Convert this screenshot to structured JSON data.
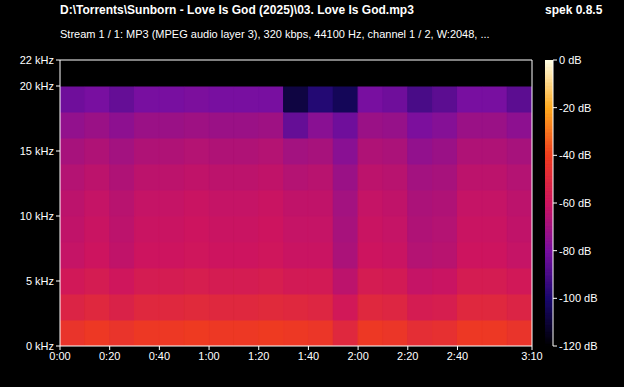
{
  "chart_data": {
    "type": "heatmap",
    "title": "D:\\Torrents\\Sunborn - Love Is God (2025)\\03. Love Is God.mp3",
    "subtitle": "Stream 1 / 1: MP3 (MPEG audio layer 3), 320 kbps, 44100 Hz, channel 1 / 2, W:2048, ...",
    "annotations": [
      "spek 0.8.5"
    ],
    "xlim": [
      0,
      190
    ],
    "xticks": [
      {
        "value": 0,
        "label": "0:00"
      },
      {
        "value": 20,
        "label": "0:20"
      },
      {
        "value": 40,
        "label": "0:40"
      },
      {
        "value": 60,
        "label": "1:00"
      },
      {
        "value": 80,
        "label": "1:20"
      },
      {
        "value": 100,
        "label": "1:40"
      },
      {
        "value": 120,
        "label": "2:00"
      },
      {
        "value": 140,
        "label": "2:20"
      },
      {
        "value": 160,
        "label": "2:40"
      },
      {
        "value": 190,
        "label": "3:10"
      }
    ],
    "ylim": [
      0,
      22
    ],
    "yticks": [
      {
        "value": 0,
        "label": "0 kHz"
      },
      {
        "value": 5,
        "label": "5 kHz"
      },
      {
        "value": 10,
        "label": "10 kHz"
      },
      {
        "value": 15,
        "label": "15 kHz"
      },
      {
        "value": 20,
        "label": "20 kHz"
      },
      {
        "value": 22,
        "label": "22 kHz"
      }
    ],
    "x_edges": [
      0,
      10,
      20,
      30,
      40,
      50,
      60,
      70,
      80,
      90,
      100,
      110,
      120,
      130,
      140,
      150,
      160,
      170,
      180,
      190
    ],
    "y_edges": [
      0,
      2,
      4,
      6,
      8,
      10,
      12,
      14,
      16,
      18,
      20,
      22
    ],
    "cells": [
      [
        -44,
        -42,
        -44,
        -42,
        -42,
        -41,
        -42,
        -42,
        -41,
        -42,
        -43,
        -50,
        -42,
        -43,
        -47,
        -46,
        -42,
        -42,
        -44
      ],
      [
        -52,
        -50,
        -53,
        -50,
        -50,
        -49,
        -50,
        -50,
        -49,
        -50,
        -51,
        -58,
        -50,
        -51,
        -56,
        -55,
        -50,
        -50,
        -52
      ],
      [
        -58,
        -56,
        -59,
        -56,
        -56,
        -55,
        -56,
        -56,
        -55,
        -57,
        -57,
        -64,
        -56,
        -57,
        -62,
        -61,
        -56,
        -56,
        -58
      ],
      [
        -62,
        -60,
        -63,
        -60,
        -60,
        -59,
        -60,
        -60,
        -59,
        -61,
        -61,
        -68,
        -60,
        -61,
        -66,
        -65,
        -60,
        -60,
        -62
      ],
      [
        -63,
        -61,
        -64,
        -61,
        -61,
        -60,
        -61,
        -61,
        -60,
        -62,
        -62,
        -69,
        -61,
        -62,
        -67,
        -66,
        -61,
        -61,
        -63
      ],
      [
        -64,
        -62,
        -65,
        -62,
        -62,
        -61,
        -62,
        -62,
        -61,
        -63,
        -63,
        -70,
        -62,
        -63,
        -68,
        -67,
        -62,
        -62,
        -64
      ],
      [
        -66,
        -64,
        -67,
        -64,
        -64,
        -63,
        -64,
        -64,
        -63,
        -66,
        -65,
        -72,
        -64,
        -65,
        -70,
        -69,
        -64,
        -64,
        -66
      ],
      [
        -69,
        -67,
        -70,
        -67,
        -67,
        -66,
        -67,
        -67,
        -66,
        -70,
        -69,
        -76,
        -67,
        -68,
        -74,
        -72,
        -67,
        -67,
        -69
      ],
      [
        -74,
        -72,
        -75,
        -72,
        -72,
        -71,
        -72,
        -72,
        -71,
        -84,
        -76,
        -82,
        -72,
        -73,
        -79,
        -77,
        -72,
        -72,
        -75
      ],
      [
        -82,
        -80,
        -84,
        -80,
        -80,
        -79,
        -80,
        -80,
        -80,
        -108,
        -98,
        -104,
        -80,
        -82,
        -90,
        -86,
        -80,
        -80,
        -86
      ],
      [
        -120,
        -120,
        -120,
        -120,
        -120,
        -120,
        -120,
        -120,
        -120,
        -120,
        -120,
        -120,
        -120,
        -120,
        -120,
        -120,
        -120,
        -120,
        -120
      ]
    ],
    "colorbar": {
      "range": [
        -120,
        0
      ],
      "ticks": [
        {
          "value": 0,
          "label": "0 dB"
        },
        {
          "value": -20,
          "label": "-20 dB"
        },
        {
          "value": -40,
          "label": "-40 dB"
        },
        {
          "value": -60,
          "label": "-60 dB"
        },
        {
          "value": -80,
          "label": "-80 dB"
        },
        {
          "value": -100,
          "label": "-100 dB"
        },
        {
          "value": -120,
          "label": "-120 dB"
        }
      ]
    }
  }
}
